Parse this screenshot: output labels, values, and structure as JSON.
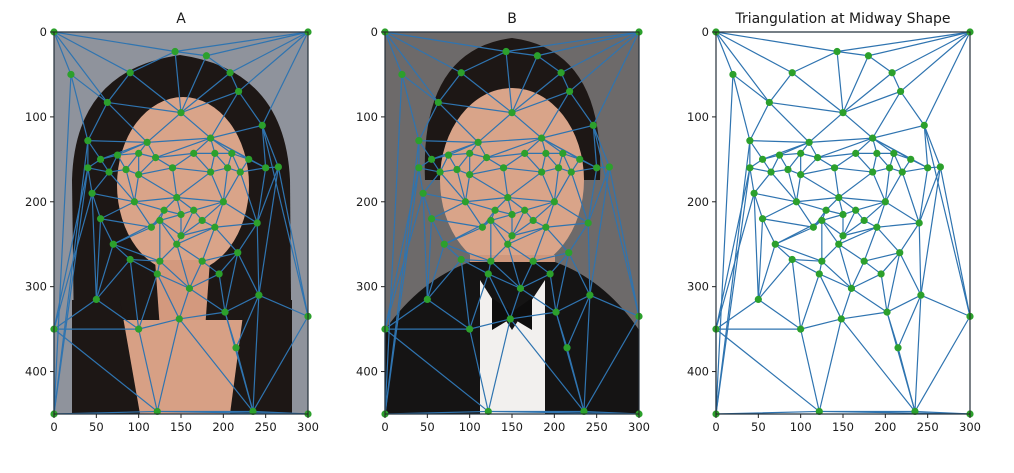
{
  "chart_data": [
    {
      "type": "triangulation",
      "title": "A",
      "background": "photo-portrait-woman",
      "xlim": [
        0,
        300
      ],
      "ylim": [
        450,
        0
      ],
      "xticks": [
        0,
        50,
        100,
        150,
        200,
        250,
        300
      ],
      "yticks": [
        0,
        100,
        200,
        300,
        400
      ],
      "points": [
        [
          0,
          0
        ],
        [
          300,
          0
        ],
        [
          0,
          450
        ],
        [
          300,
          450
        ],
        [
          0,
          350
        ],
        [
          300,
          335
        ],
        [
          122,
          447
        ],
        [
          235,
          447
        ],
        [
          63,
          83
        ],
        [
          90,
          48
        ],
        [
          143,
          23
        ],
        [
          180,
          28
        ],
        [
          208,
          48
        ],
        [
          218,
          70
        ],
        [
          246,
          110
        ],
        [
          265,
          159
        ],
        [
          40,
          160
        ],
        [
          45,
          190
        ],
        [
          55,
          220
        ],
        [
          70,
          250
        ],
        [
          90,
          268
        ],
        [
          122,
          285
        ],
        [
          160,
          302
        ],
        [
          195,
          285
        ],
        [
          217,
          260
        ],
        [
          240,
          225
        ],
        [
          250,
          160
        ],
        [
          55,
          150
        ],
        [
          75,
          145
        ],
        [
          100,
          143
        ],
        [
          120,
          148
        ],
        [
          165,
          143
        ],
        [
          190,
          143
        ],
        [
          210,
          143
        ],
        [
          230,
          150
        ],
        [
          65,
          165
        ],
        [
          85,
          162
        ],
        [
          100,
          168
        ],
        [
          185,
          165
        ],
        [
          205,
          160
        ],
        [
          220,
          165
        ],
        [
          140,
          160
        ],
        [
          145,
          195
        ],
        [
          130,
          210
        ],
        [
          150,
          215
        ],
        [
          165,
          210
        ],
        [
          115,
          230
        ],
        [
          150,
          240
        ],
        [
          190,
          230
        ],
        [
          145,
          250
        ],
        [
          125,
          222
        ],
        [
          175,
          222
        ],
        [
          40,
          128
        ],
        [
          50,
          315
        ],
        [
          100,
          350
        ],
        [
          148,
          338
        ],
        [
          202,
          330
        ],
        [
          242,
          310
        ],
        [
          215,
          372
        ],
        [
          20,
          50
        ],
        [
          150,
          95
        ],
        [
          110,
          130
        ],
        [
          185,
          125
        ],
        [
          95,
          200
        ],
        [
          200,
          200
        ],
        [
          125,
          270
        ],
        [
          175,
          270
        ]
      ],
      "triangles": [
        [
          0,
          59,
          2
        ],
        [
          0,
          8,
          59
        ],
        [
          0,
          9,
          8
        ],
        [
          0,
          10,
          9
        ],
        [
          0,
          1,
          10
        ],
        [
          1,
          11,
          10
        ],
        [
          1,
          12,
          11
        ],
        [
          1,
          13,
          12
        ],
        [
          1,
          14,
          13
        ],
        [
          1,
          5,
          14
        ],
        [
          5,
          15,
          14
        ],
        [
          5,
          57,
          15
        ],
        [
          59,
          52,
          2
        ],
        [
          59,
          8,
          52
        ],
        [
          52,
          16,
          2
        ],
        [
          16,
          4,
          2
        ],
        [
          16,
          17,
          4
        ],
        [
          17,
          53,
          4
        ],
        [
          17,
          18,
          53
        ],
        [
          18,
          19,
          53
        ],
        [
          19,
          20,
          53
        ],
        [
          20,
          54,
          53
        ],
        [
          53,
          54,
          4
        ],
        [
          54,
          6,
          4
        ],
        [
          4,
          6,
          2
        ],
        [
          6,
          54,
          55
        ],
        [
          6,
          55,
          7
        ],
        [
          55,
          56,
          7
        ],
        [
          56,
          58,
          7
        ],
        [
          58,
          57,
          7
        ],
        [
          57,
          5,
          7
        ],
        [
          7,
          5,
          3
        ],
        [
          7,
          3,
          6
        ],
        [
          6,
          3,
          2
        ],
        [
          20,
          21,
          54
        ],
        [
          21,
          55,
          54
        ],
        [
          21,
          22,
          55
        ],
        [
          22,
          56,
          55
        ],
        [
          22,
          23,
          56
        ],
        [
          23,
          24,
          56
        ],
        [
          24,
          57,
          56
        ],
        [
          24,
          25,
          57
        ],
        [
          25,
          15,
          57
        ],
        [
          25,
          26,
          15
        ],
        [
          26,
          14,
          15
        ],
        [
          8,
          9,
          60
        ],
        [
          9,
          10,
          60
        ],
        [
          10,
          11,
          60
        ],
        [
          11,
          12,
          60
        ],
        [
          12,
          13,
          60
        ],
        [
          13,
          62,
          60
        ],
        [
          8,
          61,
          52
        ],
        [
          8,
          60,
          61
        ],
        [
          61,
          60,
          62
        ],
        [
          13,
          14,
          62
        ],
        [
          14,
          26,
          62
        ],
        [
          52,
          61,
          27
        ],
        [
          52,
          27,
          16
        ],
        [
          61,
          28,
          27
        ],
        [
          61,
          29,
          28
        ],
        [
          61,
          30,
          29
        ],
        [
          61,
          62,
          30
        ],
        [
          30,
          62,
          31
        ],
        [
          62,
          32,
          31
        ],
        [
          62,
          33,
          32
        ],
        [
          62,
          34,
          33
        ],
        [
          62,
          26,
          34
        ],
        [
          27,
          35,
          16
        ],
        [
          27,
          28,
          35
        ],
        [
          28,
          36,
          35
        ],
        [
          28,
          29,
          36
        ],
        [
          29,
          37,
          36
        ],
        [
          29,
          30,
          37
        ],
        [
          30,
          41,
          37
        ],
        [
          30,
          31,
          41
        ],
        [
          31,
          38,
          41
        ],
        [
          31,
          32,
          38
        ],
        [
          32,
          39,
          38
        ],
        [
          32,
          33,
          39
        ],
        [
          33,
          40,
          39
        ],
        [
          33,
          34,
          40
        ],
        [
          34,
          26,
          40
        ],
        [
          35,
          17,
          16
        ],
        [
          35,
          63,
          17
        ],
        [
          35,
          36,
          63
        ],
        [
          36,
          37,
          63
        ],
        [
          37,
          42,
          63
        ],
        [
          37,
          41,
          42
        ],
        [
          41,
          38,
          42
        ],
        [
          38,
          64,
          42
        ],
        [
          38,
          39,
          64
        ],
        [
          39,
          40,
          64
        ],
        [
          40,
          25,
          64
        ],
        [
          40,
          26,
          25
        ],
        [
          17,
          63,
          18
        ],
        [
          63,
          46,
          18
        ],
        [
          63,
          43,
          46
        ],
        [
          63,
          42,
          43
        ],
        [
          42,
          44,
          43
        ],
        [
          42,
          45,
          44
        ],
        [
          42,
          64,
          45
        ],
        [
          64,
          51,
          45
        ],
        [
          64,
          48,
          51
        ],
        [
          64,
          25,
          48
        ],
        [
          43,
          50,
          46
        ],
        [
          43,
          44,
          50
        ],
        [
          44,
          47,
          50
        ],
        [
          44,
          45,
          47
        ],
        [
          45,
          51,
          47
        ],
        [
          51,
          48,
          47
        ],
        [
          18,
          46,
          19
        ],
        [
          46,
          50,
          19
        ],
        [
          50,
          47,
          49
        ],
        [
          50,
          49,
          65
        ],
        [
          50,
          65,
          19
        ],
        [
          19,
          65,
          20
        ],
        [
          65,
          21,
          20
        ],
        [
          65,
          49,
          22
        ],
        [
          65,
          22,
          21
        ],
        [
          47,
          48,
          49
        ],
        [
          48,
          66,
          49
        ],
        [
          49,
          66,
          22
        ],
        [
          66,
          23,
          22
        ],
        [
          48,
          24,
          66
        ],
        [
          66,
          24,
          23
        ],
        [
          48,
          25,
          24
        ]
      ]
    },
    {
      "type": "triangulation",
      "title": "B",
      "background": "photo-portrait-man-tuxedo",
      "xlim": [
        0,
        300
      ],
      "ylim": [
        450,
        0
      ],
      "xticks": [
        0,
        50,
        100,
        150,
        200,
        250,
        300
      ],
      "yticks": [
        0,
        100,
        200,
        300,
        400
      ],
      "points": [
        [
          0,
          0
        ],
        [
          300,
          0
        ],
        [
          0,
          450
        ],
        [
          300,
          450
        ],
        [
          0,
          350
        ],
        [
          300,
          335
        ],
        [
          122,
          447
        ],
        [
          235,
          447
        ],
        [
          63,
          83
        ],
        [
          90,
          48
        ],
        [
          143,
          23
        ],
        [
          180,
          28
        ],
        [
          208,
          48
        ],
        [
          218,
          70
        ],
        [
          246,
          110
        ],
        [
          265,
          159
        ],
        [
          40,
          160
        ],
        [
          45,
          190
        ],
        [
          55,
          220
        ],
        [
          70,
          250
        ],
        [
          90,
          268
        ],
        [
          122,
          285
        ],
        [
          160,
          302
        ],
        [
          195,
          285
        ],
        [
          217,
          260
        ],
        [
          240,
          225
        ],
        [
          250,
          160
        ],
        [
          55,
          150
        ],
        [
          75,
          145
        ],
        [
          100,
          143
        ],
        [
          120,
          148
        ],
        [
          165,
          143
        ],
        [
          190,
          143
        ],
        [
          210,
          143
        ],
        [
          230,
          150
        ],
        [
          65,
          165
        ],
        [
          85,
          162
        ],
        [
          100,
          168
        ],
        [
          185,
          165
        ],
        [
          205,
          160
        ],
        [
          220,
          165
        ],
        [
          140,
          160
        ],
        [
          145,
          195
        ],
        [
          130,
          210
        ],
        [
          150,
          215
        ],
        [
          165,
          210
        ],
        [
          115,
          230
        ],
        [
          150,
          240
        ],
        [
          190,
          230
        ],
        [
          145,
          250
        ],
        [
          125,
          222
        ],
        [
          175,
          222
        ],
        [
          40,
          128
        ],
        [
          50,
          315
        ],
        [
          100,
          350
        ],
        [
          148,
          338
        ],
        [
          202,
          330
        ],
        [
          242,
          310
        ],
        [
          215,
          372
        ],
        [
          20,
          50
        ],
        [
          150,
          95
        ],
        [
          110,
          130
        ],
        [
          185,
          125
        ],
        [
          95,
          200
        ],
        [
          200,
          200
        ],
        [
          125,
          270
        ],
        [
          175,
          270
        ]
      ],
      "triangles": "same-as-A"
    },
    {
      "type": "triangulation",
      "title": "Triangulation at Midway Shape",
      "xlim": [
        0,
        300
      ],
      "ylim": [
        450,
        0
      ],
      "xticks": [
        0,
        50,
        100,
        150,
        200,
        250,
        300
      ],
      "yticks": [
        0,
        100,
        200,
        300,
        400
      ],
      "points": [
        [
          0,
          0
        ],
        [
          300,
          0
        ],
        [
          0,
          450
        ],
        [
          300,
          450
        ],
        [
          0,
          350
        ],
        [
          300,
          335
        ],
        [
          122,
          447
        ],
        [
          235,
          447
        ],
        [
          63,
          83
        ],
        [
          90,
          48
        ],
        [
          143,
          23
        ],
        [
          180,
          28
        ],
        [
          208,
          48
        ],
        [
          218,
          70
        ],
        [
          246,
          110
        ],
        [
          265,
          159
        ],
        [
          40,
          160
        ],
        [
          45,
          190
        ],
        [
          55,
          220
        ],
        [
          70,
          250
        ],
        [
          90,
          268
        ],
        [
          122,
          285
        ],
        [
          160,
          302
        ],
        [
          195,
          285
        ],
        [
          217,
          260
        ],
        [
          240,
          225
        ],
        [
          250,
          160
        ],
        [
          55,
          150
        ],
        [
          75,
          145
        ],
        [
          100,
          143
        ],
        [
          120,
          148
        ],
        [
          165,
          143
        ],
        [
          190,
          143
        ],
        [
          210,
          143
        ],
        [
          230,
          150
        ],
        [
          65,
          165
        ],
        [
          85,
          162
        ],
        [
          100,
          168
        ],
        [
          185,
          165
        ],
        [
          205,
          160
        ],
        [
          220,
          165
        ],
        [
          140,
          160
        ],
        [
          145,
          195
        ],
        [
          130,
          210
        ],
        [
          150,
          215
        ],
        [
          165,
          210
        ],
        [
          115,
          230
        ],
        [
          150,
          240
        ],
        [
          190,
          230
        ],
        [
          145,
          250
        ],
        [
          125,
          222
        ],
        [
          175,
          222
        ],
        [
          40,
          128
        ],
        [
          50,
          315
        ],
        [
          100,
          350
        ],
        [
          148,
          338
        ],
        [
          202,
          330
        ],
        [
          242,
          310
        ],
        [
          215,
          372
        ],
        [
          20,
          50
        ],
        [
          150,
          95
        ],
        [
          110,
          130
        ],
        [
          185,
          125
        ],
        [
          95,
          200
        ],
        [
          200,
          200
        ],
        [
          125,
          270
        ],
        [
          175,
          270
        ]
      ],
      "triangles": "same-as-A"
    }
  ],
  "colors": {
    "edge": "#2f74b0",
    "point": "#2ca02c",
    "axis": "#222222",
    "photo_bg_A": "#8f939c",
    "photo_bg_B": "#6d6a6a",
    "hair": "#1d1715",
    "skin": "#d9a489",
    "tux": "#151414",
    "shirt": "#f2f0ee"
  }
}
